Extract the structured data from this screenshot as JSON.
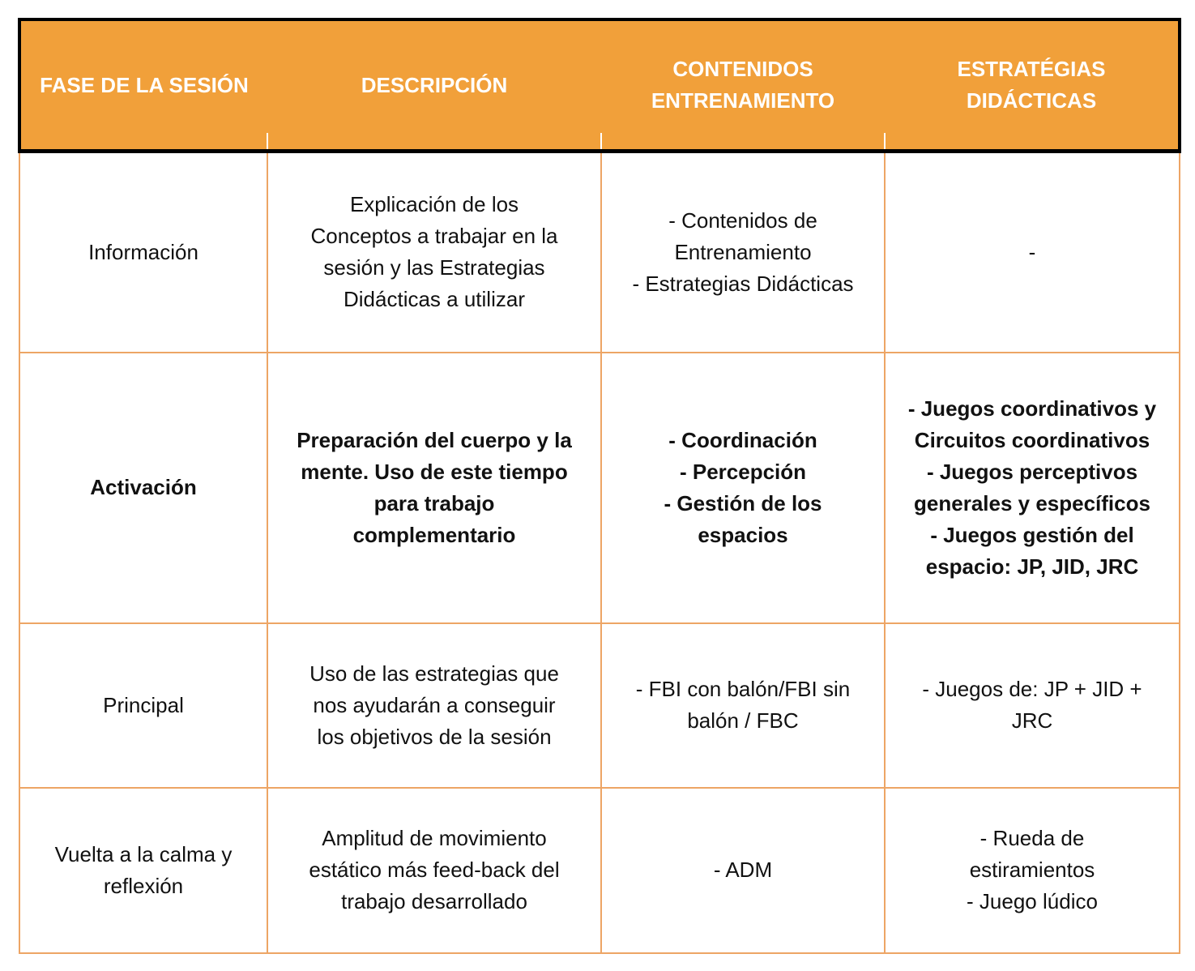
{
  "header": [
    "FASE DE LA SESIÓN",
    "DESCRIPCIÓN",
    "CONTENIDOS ENTRENAMIENTO",
    "ESTRATÉGIAS DIDÁCTICAS"
  ],
  "rows": [
    {
      "bold": false,
      "cells": [
        [
          "Información"
        ],
        [
          "Explicación de los",
          "Conceptos a trabajar en la",
          "sesión y las Estrategias",
          "Didácticas a utilizar"
        ],
        [
          "- Contenidos de",
          "Entrenamiento",
          "- Estrategias Didácticas"
        ],
        [
          "-"
        ]
      ]
    },
    {
      "bold": true,
      "cells": [
        [
          "Activación"
        ],
        [
          "Preparación del cuerpo y la",
          "mente. Uso de este tiempo",
          "para trabajo",
          "complementario"
        ],
        [
          "- Coordinación",
          "- Percepción",
          "- Gestión de los",
          "espacios"
        ],
        [
          "- Juegos coordinativos y",
          "Circuitos coordinativos",
          "- Juegos perceptivos",
          "generales y específicos",
          "- Juegos gestión del",
          "espacio: JP, JID, JRC"
        ]
      ]
    },
    {
      "bold": false,
      "cells": [
        [
          "Principal"
        ],
        [
          "Uso de las estrategias que",
          "nos ayudarán a conseguir",
          "los objetivos de la sesión"
        ],
        [
          "- FBI con balón/FBI sin",
          "balón / FBC"
        ],
        [
          "- Juegos de: JP + JID +",
          "JRC"
        ]
      ]
    },
    {
      "bold": false,
      "cells": [
        [
          "Vuelta a la calma y",
          "reflexión"
        ],
        [
          "Amplitud de movimiento",
          "estático más feed-back del",
          "trabajo desarrollado"
        ],
        [
          "- ADM"
        ],
        [
          "- Rueda de",
          "estiramientos",
          "- Juego lúdico"
        ]
      ]
    }
  ],
  "colors": {
    "header_bg": "#f1a03a",
    "header_text": "#ffffff",
    "cell_border": "#eda565"
  }
}
